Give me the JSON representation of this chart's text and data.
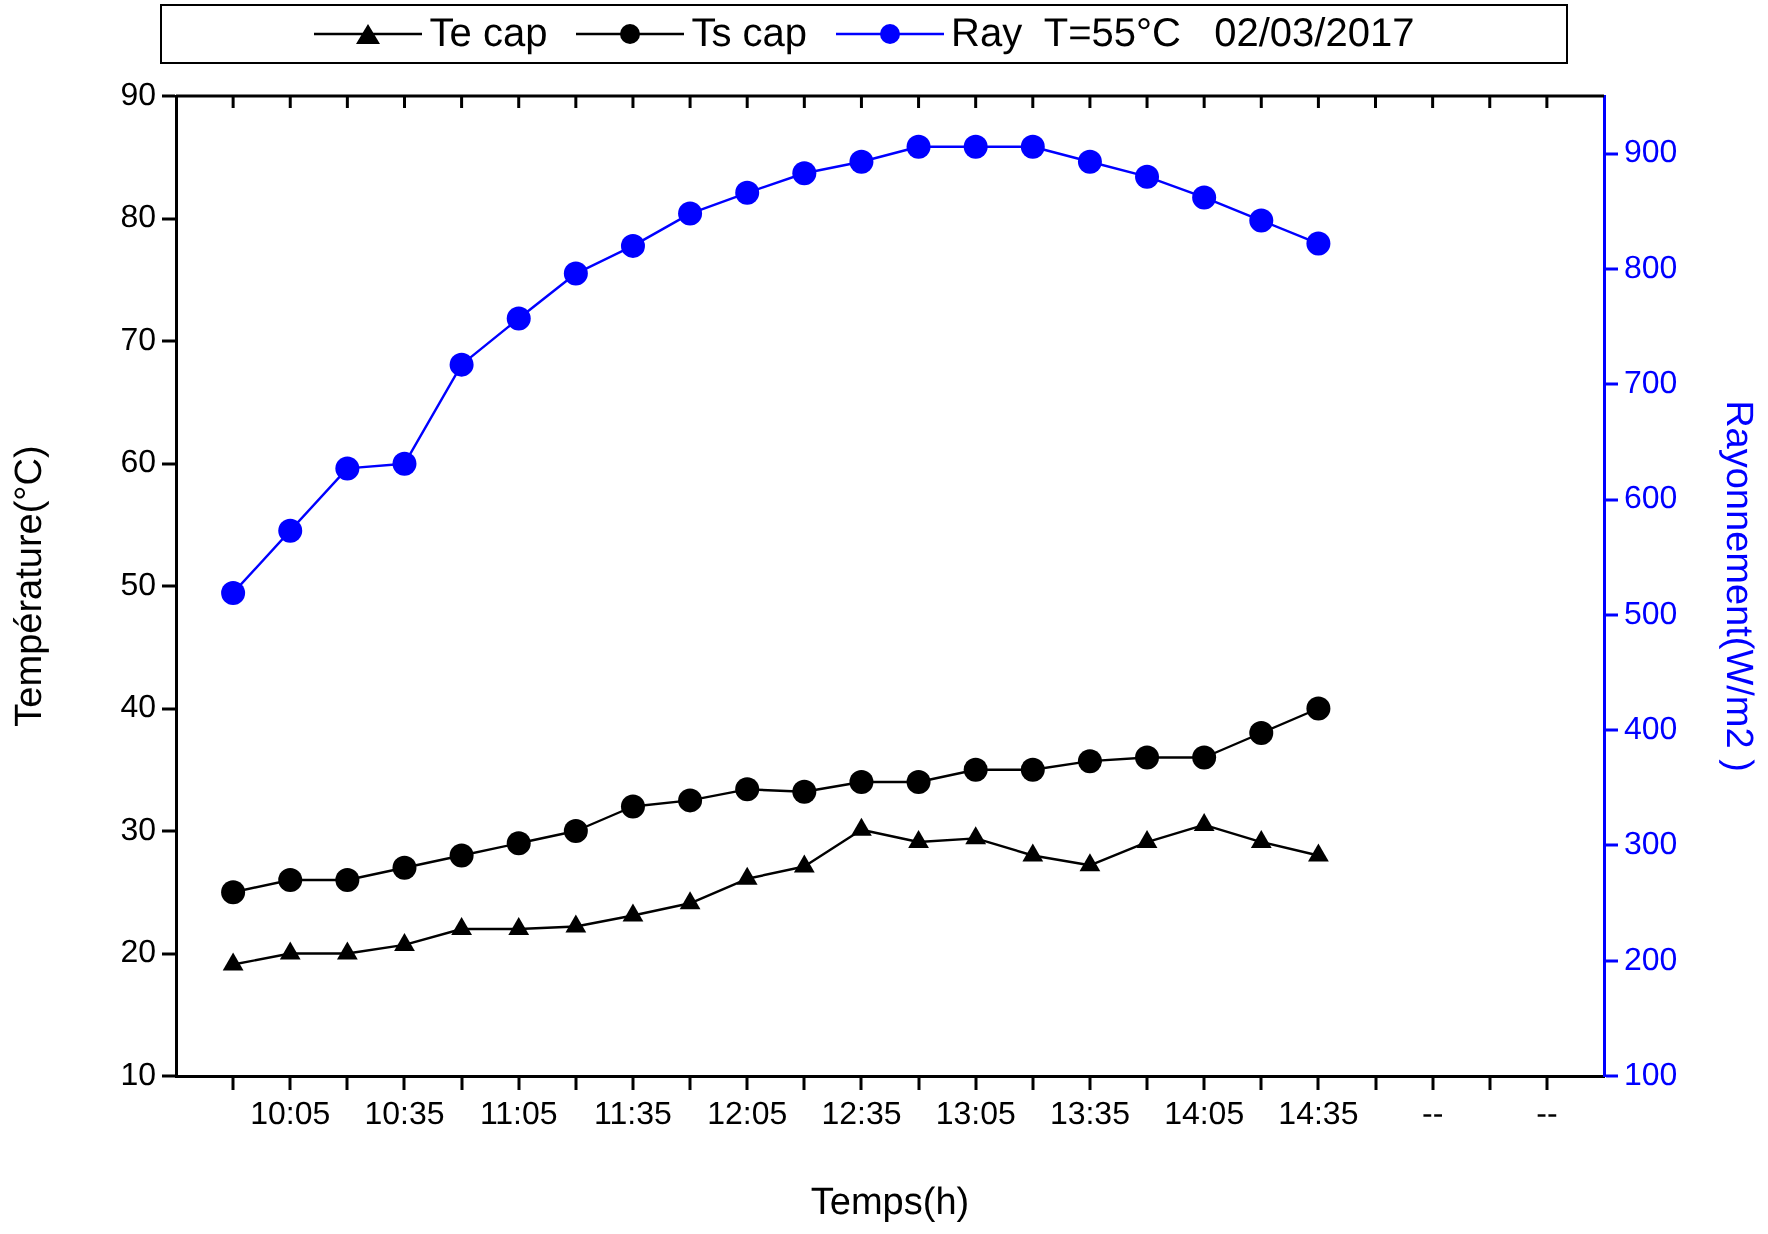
{
  "chart_data": {
    "type": "line",
    "xlabel": "Temps(h)",
    "ylabel": "Température(°C)",
    "y2label": "Rayonnement(W/m2 )",
    "categories": [
      null,
      "10:05",
      null,
      "10:35",
      null,
      "11:05",
      null,
      "11:35",
      null,
      "12:05",
      null,
      "12:35",
      null,
      "13:05",
      null,
      "13:35",
      null,
      "14:05",
      null,
      "14:35",
      null,
      "--",
      null,
      "--"
    ],
    "ylim": [
      10,
      90
    ],
    "yticks": [
      10,
      20,
      30,
      40,
      50,
      60,
      70,
      80,
      90
    ],
    "y2lim": [
      100,
      950
    ],
    "y2ticks": [
      100,
      200,
      300,
      400,
      500,
      600,
      700,
      800,
      900
    ],
    "grid": false,
    "legend": "top",
    "line_style": "solid",
    "series": [
      {
        "name": "Te cap",
        "color": "#000000",
        "marker": "triangle",
        "values": [
          19.1,
          20,
          20,
          20.7,
          22,
          22,
          22.2,
          23.1,
          24.1,
          26.1,
          27.1,
          30.1,
          29.1,
          29.4,
          28,
          27.2,
          29.1,
          30.5,
          29.1,
          28,
          null,
          null,
          null,
          null
        ]
      },
      {
        "name": "Ts cap",
        "color": "#000000",
        "marker": "circle",
        "values": [
          25,
          26,
          26,
          27,
          28,
          29,
          30,
          32,
          32.5,
          33.4,
          33.2,
          34,
          34,
          35,
          35,
          35.7,
          36,
          36,
          38,
          40,
          null,
          null,
          null,
          null
        ]
      },
      {
        "name": "Ray  T=55°C   02/03/2017",
        "color": "#0000ff",
        "marker": "circle",
        "axis": "y2",
        "values": [
          519,
          573,
          627,
          631,
          717,
          757,
          796,
          820,
          848,
          866,
          883,
          893,
          906,
          906,
          906,
          893,
          880,
          862,
          842,
          822,
          null,
          null,
          null,
          null
        ]
      }
    ]
  }
}
